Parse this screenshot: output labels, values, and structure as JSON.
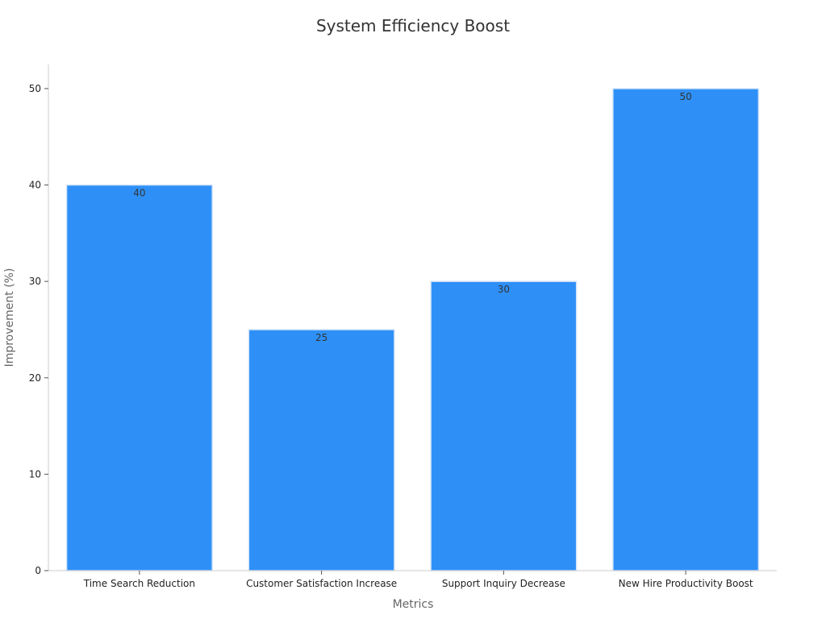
{
  "chart_data": {
    "type": "bar",
    "title": "System Efficiency Boost",
    "xlabel": "Metrics",
    "ylabel": "Improvement (%)",
    "categories": [
      "Time Search Reduction",
      "Customer Satisfaction Increase",
      "Support Inquiry Decrease",
      "New Hire Productivity Boost"
    ],
    "values": [
      40,
      25,
      30,
      50
    ],
    "data_labels": [
      "40",
      "25",
      "30",
      "50"
    ],
    "ylim": [
      0,
      52.5
    ],
    "yticks": [
      0,
      10,
      20,
      30,
      40,
      50
    ],
    "grid": false,
    "colors": {
      "bar": "#2e90f7",
      "bar_edge": "#d6e6f9",
      "axis": "#cccccc",
      "tick_text": "#222222",
      "label_text": "#333333"
    }
  }
}
